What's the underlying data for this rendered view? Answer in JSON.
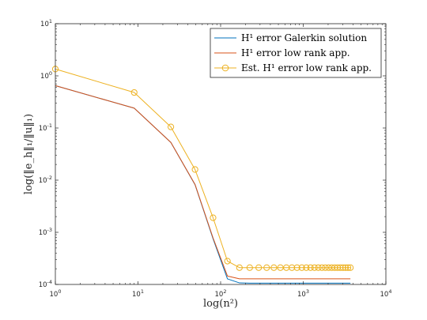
{
  "chart_data": {
    "type": "line",
    "xscale": "log",
    "yscale": "log",
    "xlim": [
      1,
      10000
    ],
    "ylim": [
      0.0001,
      10
    ],
    "grid": false,
    "legend_position": "top-right",
    "xlabel": "log(n²)",
    "ylabel": "log(‖e_h‖₁/‖u‖₁)",
    "x_ticks": [
      {
        "value": 1,
        "base": "10",
        "exp": "0"
      },
      {
        "value": 10,
        "base": "10",
        "exp": "1"
      },
      {
        "value": 100,
        "base": "10",
        "exp": "2"
      },
      {
        "value": 1000,
        "base": "10",
        "exp": "3"
      },
      {
        "value": 10000,
        "base": "10",
        "exp": "4"
      }
    ],
    "y_ticks": [
      {
        "value": 0.0001,
        "base": "10",
        "exp": "-4"
      },
      {
        "value": 0.001,
        "base": "10",
        "exp": "-3"
      },
      {
        "value": 0.01,
        "base": "10",
        "exp": "-2"
      },
      {
        "value": 0.1,
        "base": "10",
        "exp": "-1"
      },
      {
        "value": 1,
        "base": "10",
        "exp": "0"
      },
      {
        "value": 10,
        "base": "10",
        "exp": "1"
      }
    ],
    "series": [
      {
        "name": "H¹ error Galerkin solution",
        "color": "#0072BD",
        "marker": "none",
        "x": [
          1,
          9,
          25,
          49,
          81,
          121,
          169,
          225,
          289,
          361,
          441,
          529,
          625,
          729,
          841,
          961,
          1089,
          1225,
          1369,
          1521,
          1681,
          1849,
          2025,
          2209,
          2401,
          2601,
          2809,
          3025,
          3249,
          3481,
          3721
        ],
        "y": [
          0.65,
          0.24,
          0.053,
          0.0082,
          0.00075,
          0.000128,
          0.000107,
          0.000106,
          0.000106,
          0.000106,
          0.000106,
          0.000106,
          0.000106,
          0.000106,
          0.000106,
          0.000106,
          0.000106,
          0.000106,
          0.000106,
          0.000106,
          0.000106,
          0.000106,
          0.000106,
          0.000106,
          0.000106,
          0.000106,
          0.000106,
          0.000106,
          0.000106,
          0.000106,
          0.000106
        ]
      },
      {
        "name": "H¹ error low rank app.",
        "color": "#D95319",
        "marker": "none",
        "x": [
          1,
          9,
          25,
          49,
          81,
          121,
          169,
          225,
          289,
          361,
          441,
          529,
          625,
          729,
          841,
          961,
          1089,
          1225,
          1369,
          1521,
          1681,
          1849,
          2025,
          2209,
          2401,
          2601,
          2809,
          3025,
          3249,
          3481,
          3721
        ],
        "y": [
          0.65,
          0.24,
          0.053,
          0.0083,
          0.00078,
          0.000145,
          0.000128,
          0.000128,
          0.000128,
          0.000128,
          0.000128,
          0.000128,
          0.000128,
          0.000128,
          0.000128,
          0.000128,
          0.000128,
          0.000128,
          0.000128,
          0.000128,
          0.000128,
          0.000128,
          0.000128,
          0.000128,
          0.000128,
          0.000128,
          0.000128,
          0.000128,
          0.000128,
          0.000128,
          0.000128
        ]
      },
      {
        "name": "Est. H¹ error low rank app.",
        "color": "#EDB120",
        "marker": "circle",
        "x": [
          1,
          9,
          25,
          49,
          81,
          121,
          169,
          225,
          289,
          361,
          441,
          529,
          625,
          729,
          841,
          961,
          1089,
          1225,
          1369,
          1521,
          1681,
          1849,
          2025,
          2209,
          2401,
          2601,
          2809,
          3025,
          3249,
          3481,
          3721
        ],
        "y": [
          1.35,
          0.48,
          0.105,
          0.016,
          0.0019,
          0.00028,
          0.00021,
          0.00021,
          0.00021,
          0.00021,
          0.00021,
          0.00021,
          0.00021,
          0.00021,
          0.00021,
          0.00021,
          0.00021,
          0.00021,
          0.00021,
          0.00021,
          0.00021,
          0.00021,
          0.00021,
          0.00021,
          0.00021,
          0.00021,
          0.00021,
          0.00021,
          0.00021,
          0.00021,
          0.00021
        ]
      }
    ]
  }
}
